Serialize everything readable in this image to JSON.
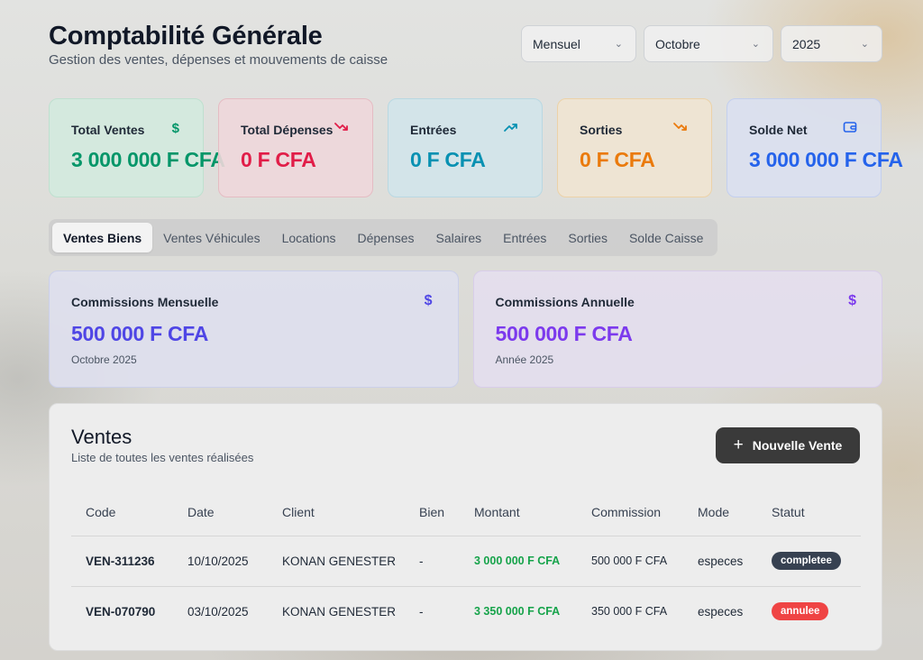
{
  "header": {
    "title": "Comptabilité Générale",
    "subtitle": "Gestion des ventes, dépenses et mouvements de caisse",
    "period_select": "Mensuel",
    "month_select": "Octobre",
    "year_select": "2025"
  },
  "stats": [
    {
      "label": "Total Ventes",
      "value": "3 000 000 F CFA",
      "icon": "dollar-icon",
      "color": "#059669"
    },
    {
      "label": "Total Dépenses",
      "value": "0 F CFA",
      "icon": "trending-down-icon",
      "color": "#e11d48"
    },
    {
      "label": "Entrées",
      "value": "0 F CFA",
      "icon": "trending-up-icon",
      "color": "#0891b2"
    },
    {
      "label": "Sorties",
      "value": "0 F CFA",
      "icon": "trending-down-icon",
      "color": "#ea7a0c"
    },
    {
      "label": "Solde Net",
      "value": "3 000 000 F CFA",
      "icon": "wallet-icon",
      "color": "#2563eb"
    }
  ],
  "tabs": [
    "Ventes Biens",
    "Ventes Véhicules",
    "Locations",
    "Dépenses",
    "Salaires",
    "Entrées",
    "Sorties",
    "Solde Caisse"
  ],
  "commissions": {
    "monthly": {
      "label": "Commissions Mensuelle",
      "value": "500 000 F CFA",
      "sub": "Octobre 2025"
    },
    "annual": {
      "label": "Commissions Annuelle",
      "value": "500 000 F CFA",
      "sub": "Année 2025"
    }
  },
  "sales": {
    "title": "Ventes",
    "subtitle": "Liste de toutes les ventes réalisées",
    "new_button": "Nouvelle Vente",
    "columns": [
      "Code",
      "Date",
      "Client",
      "Bien",
      "Montant",
      "Commission",
      "Mode",
      "Statut"
    ],
    "rows": [
      {
        "code": "VEN-311236",
        "date": "10/10/2025",
        "client": "KONAN GENESTER",
        "bien": "-",
        "montant": "3 000 000 F CFA",
        "commission": "500 000 F CFA",
        "mode": "especes",
        "statut": "completee"
      },
      {
        "code": "VEN-070790",
        "date": "03/10/2025",
        "client": "KONAN GENESTER",
        "bien": "-",
        "montant": "3 350 000 F CFA",
        "commission": "350 000 F CFA",
        "mode": "especes",
        "statut": "annulee"
      }
    ]
  }
}
